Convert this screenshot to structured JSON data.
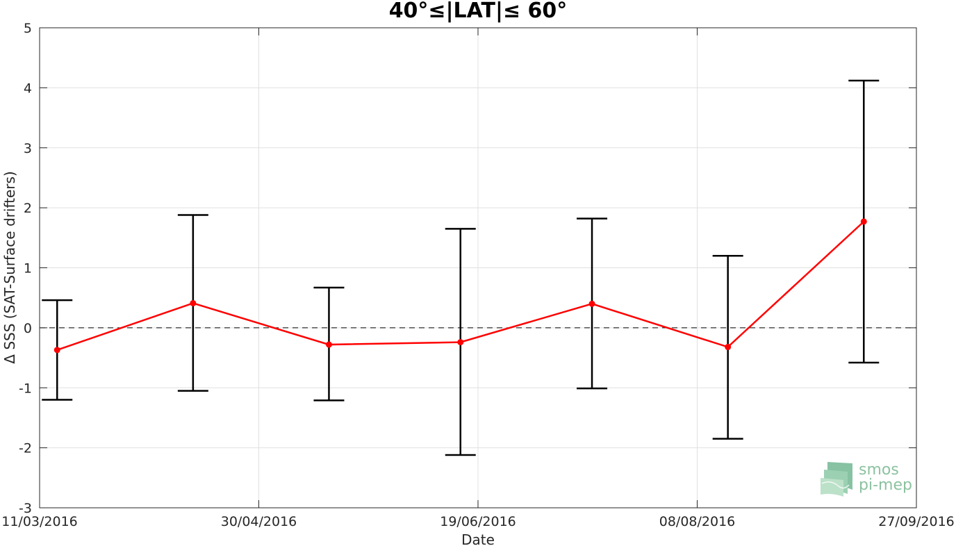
{
  "chart_data": {
    "type": "line",
    "title": "40°≤|LAT|≤ 60°",
    "xlabel": "Date",
    "ylabel": "Δ SSS (SAT-Surface drifters)",
    "x_tick_labels": [
      "11/03/2016",
      "30/04/2016",
      "19/06/2016",
      "08/08/2016",
      "27/09/2016"
    ],
    "x_range": [
      "2016-03-11",
      "2016-09-27"
    ],
    "ylim": [
      -3,
      5
    ],
    "y_ticks": [
      "-3",
      "-2",
      "-1",
      "0",
      "1",
      "2",
      "3",
      "4",
      "5"
    ],
    "grid": true,
    "reference_line": {
      "y": 0,
      "style": "dashed"
    },
    "series": [
      {
        "x": [
          "2016-03-15",
          "2016-04-15",
          "2016-05-16",
          "2016-06-15",
          "2016-07-15",
          "2016-08-15",
          "2016-09-15"
        ],
        "values": [
          -0.37,
          0.41,
          -0.28,
          -0.24,
          0.4,
          -0.32,
          1.77
        ],
        "error_low": [
          -1.2,
          -1.05,
          -1.21,
          -2.12,
          -1.01,
          -1.85,
          -0.58
        ],
        "error_high": [
          0.46,
          1.88,
          0.67,
          1.65,
          1.82,
          1.2,
          4.12
        ],
        "color": "#ff0000"
      }
    ]
  },
  "logo": {
    "line1": "smos",
    "line2": "pi-mep"
  }
}
